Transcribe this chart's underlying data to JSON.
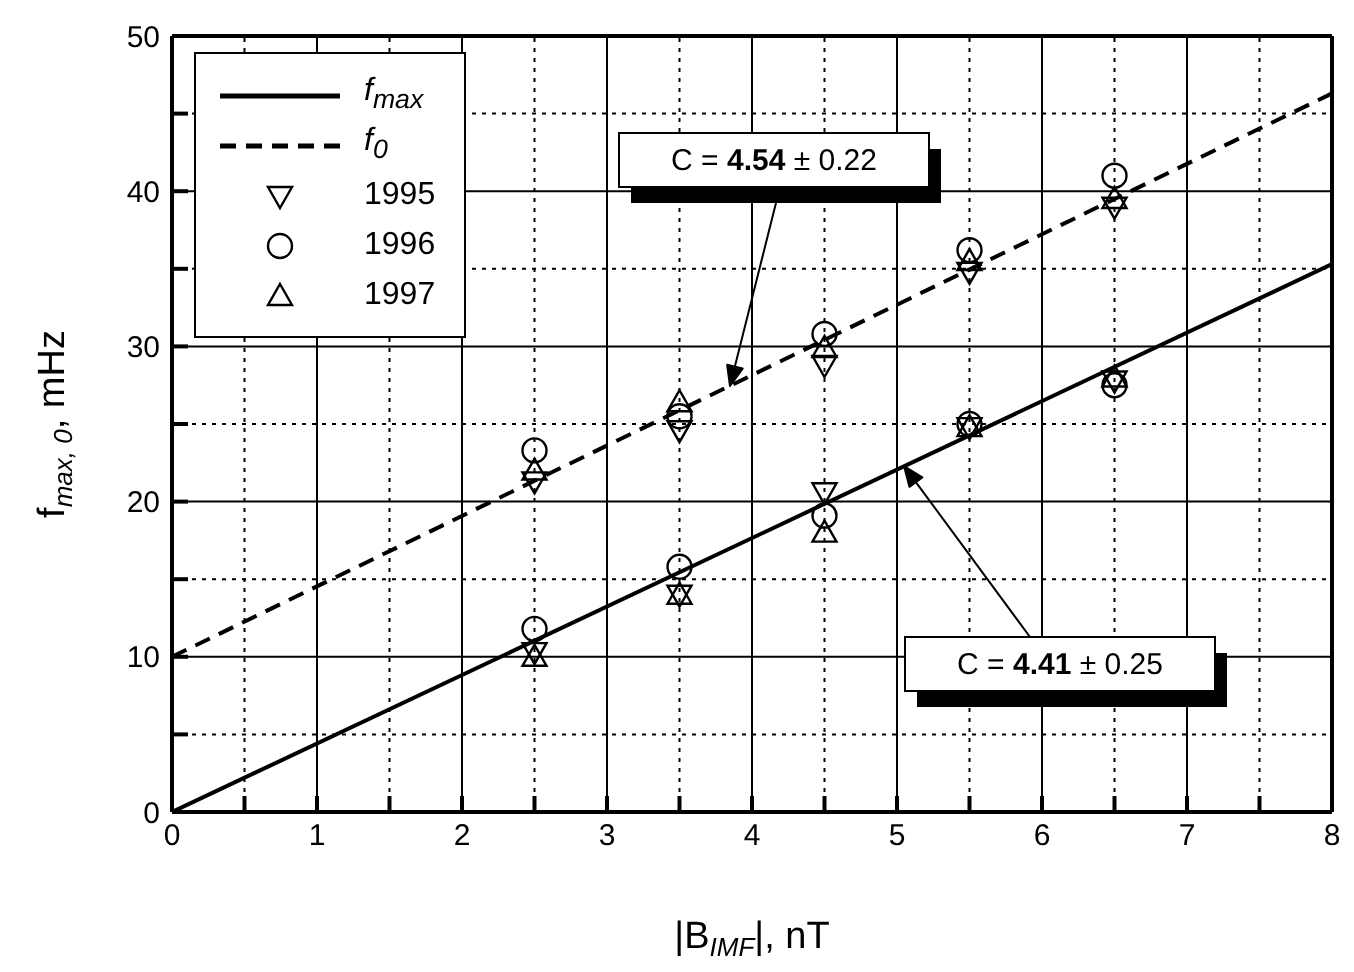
{
  "chart_data": {
    "type": "scatter",
    "xlabel": "|B$_{IMF}$|, nT",
    "ylabel": "f$_{max, 0}$, mHz",
    "xlim": [
      0,
      8
    ],
    "ylim": [
      0,
      50
    ],
    "xticks": [
      0,
      {
        "value": 0.5,
        "label": null
      },
      1,
      {
        "value": 1.5,
        "label": null
      },
      2,
      {
        "value": 2.5,
        "label": null
      },
      3,
      {
        "value": 3.5,
        "label": null
      },
      4,
      {
        "value": 4.5,
        "label": null
      },
      5,
      {
        "value": 5.5,
        "label": null
      },
      6,
      {
        "value": 6.5,
        "label": null
      },
      7,
      {
        "value": 7.5,
        "label": null
      },
      8
    ],
    "yticks": [
      0,
      {
        "value": 5,
        "label": null
      },
      10,
      {
        "value": 15,
        "label": null
      },
      20,
      {
        "value": 25,
        "label": null
      },
      30,
      {
        "value": 35,
        "label": null
      },
      40,
      {
        "value": 45,
        "label": null
      },
      50
    ],
    "grid": true,
    "legend": "top left",
    "series": [
      {
        "name": "f$_{max}$",
        "type": "line",
        "line_style": "solid",
        "color": "#000000",
        "x": [
          0,
          8
        ],
        "values": [
          0,
          35.3
        ]
      },
      {
        "name": "f$_{0}$",
        "type": "line",
        "line_style": "dashed",
        "color": "#000000",
        "x": [
          0,
          8
        ],
        "values": [
          10,
          46.3
        ]
      },
      {
        "name": "1995",
        "marker": "triangle-down",
        "color": "#000000",
        "x": [
          2.5,
          3.5,
          4.5,
          5.5,
          6.5,
          2.5,
          3.5,
          4.5,
          5.5,
          6.5
        ],
        "values": [
          21.3,
          24.6,
          28.8,
          34.8,
          39,
          10.3,
          14,
          20.6,
          24.8,
          27.8
        ]
      },
      {
        "name": "1996",
        "marker": "circle",
        "color": "#000000",
        "x": [
          2.5,
          3.5,
          4.5,
          5.5,
          6.5,
          2.5,
          3.5,
          4.5,
          5.5,
          6.5
        ],
        "values": [
          23.3,
          25.5,
          30.8,
          36.2,
          41,
          11.8,
          15.8,
          19.1,
          25,
          27.5
        ]
      },
      {
        "name": "1997",
        "marker": "triangle",
        "color": "#000000",
        "x": [
          2.5,
          3.5,
          4.5,
          5.5,
          6.5,
          2.5,
          3.5,
          4.5,
          5.5,
          6.5
        ],
        "values": [
          22,
          26.4,
          29.9,
          35.5,
          39.5,
          10,
          14,
          18,
          24.8,
          28
        ]
      }
    ],
    "annotations": [
      "C = 4.54 ± 0.22",
      "C = 4.41 ± 0.25"
    ]
  }
}
